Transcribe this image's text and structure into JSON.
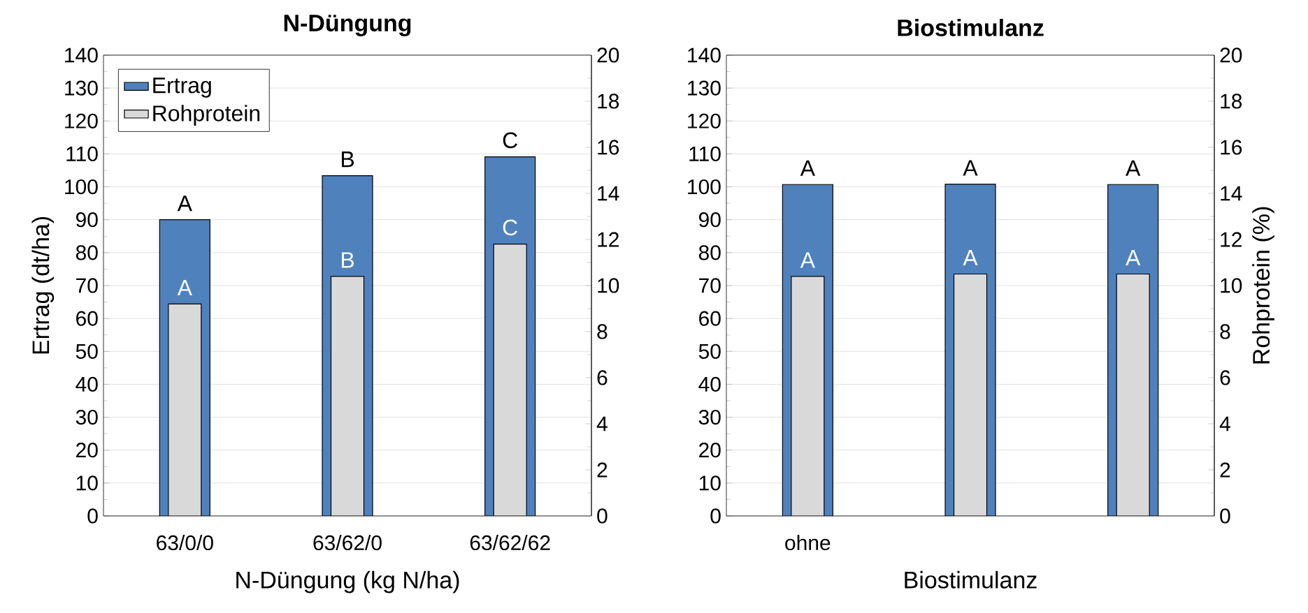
{
  "chart_data": [
    {
      "type": "bar",
      "title": "N-Düngung",
      "xlabel": "N-Düngung (kg N/ha)",
      "ylabel": "Ertrag (dt/ha)",
      "categories": [
        "63/0/0",
        "63/62/0",
        "63/62/62"
      ],
      "series": [
        {
          "name": "Ertrag",
          "color": "#4f81bd",
          "values": [
            90.0,
            103.4,
            109.1
          ],
          "value_labels": [
            "A",
            "B",
            "C"
          ]
        },
        {
          "name": "Rohprotein",
          "color": "#d9d9d9",
          "axis": "y2",
          "values": [
            9.2,
            10.4,
            11.8
          ],
          "value_labels": [
            "A",
            "B",
            "C"
          ]
        }
      ],
      "ylim": [
        0,
        140
      ],
      "yticks": [
        0,
        10,
        20,
        30,
        40,
        50,
        60,
        70,
        80,
        90,
        100,
        110,
        120,
        130,
        140
      ],
      "y2lim": [
        0,
        20
      ],
      "y2ticks": [
        0,
        2,
        4,
        6,
        8,
        10,
        12,
        14,
        16,
        18,
        20
      ],
      "grid": "y",
      "legend": "top left"
    },
    {
      "type": "bar",
      "title": "Biostimulanz",
      "xlabel": "Biostimulanz",
      "y2label": "Rohprotein (%)",
      "categories": [
        "ohne",
        null,
        null
      ],
      "series": [
        {
          "color": "#4f81bd",
          "values": [
            100.7,
            100.8,
            100.7
          ],
          "value_labels": [
            "A",
            "A",
            "A"
          ]
        },
        {
          "color": "#d9d9d9",
          "axis": "y2",
          "values": [
            10.4,
            10.5,
            10.5
          ],
          "value_labels": [
            "A",
            "A",
            "A"
          ]
        }
      ],
      "ylim": [
        0,
        140
      ],
      "yticks": [
        0,
        10,
        20,
        30,
        40,
        50,
        60,
        70,
        80,
        90,
        100,
        110,
        120,
        130,
        140
      ],
      "y2lim": [
        0,
        20
      ],
      "y2ticks": [
        0,
        2,
        4,
        6,
        8,
        10,
        12,
        14,
        16,
        18,
        20
      ],
      "grid": "y",
      "legend": false
    }
  ]
}
